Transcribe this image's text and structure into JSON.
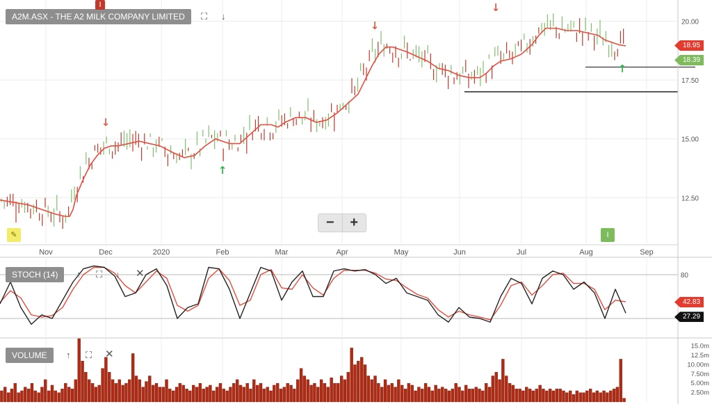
{
  "panels": {
    "price": {
      "label": "A2M.ASX - THE A2 MILK COMPANY LIMITED"
    },
    "stoch": {
      "label": "STOCH (14)"
    },
    "volume": {
      "label": "VOLUME"
    }
  },
  "controls": {
    "zoom_out": "−",
    "zoom_in": "+"
  },
  "flags": {
    "top": "I",
    "bottom": "I"
  },
  "icons": [
    "expand-icon",
    "arrow-down-icon",
    "arrow-up-icon",
    "close-icon",
    "pencil-icon",
    "zoom-out-icon",
    "zoom-in-icon"
  ],
  "colors": {
    "up": "#7fbf6a",
    "down": "#c0392b",
    "ma": "#e74c3c",
    "stoch_k": "#222222",
    "stoch_d": "#e74c3c",
    "volume": "#b22a12",
    "panel_label_bg": "#8e8e8e"
  },
  "chart_data": [
    {
      "type": "line",
      "title": "A2M.ASX - THE A2 MILK COMPANY LIMITED",
      "x_ticks": [
        "Nov",
        "Dec",
        "2020",
        "Feb",
        "Mar",
        "Apr",
        "May",
        "Jun",
        "Jul",
        "Aug",
        "Sep"
      ],
      "y_ticks": [
        "12.50",
        "15.00",
        "17.50",
        "20.00"
      ],
      "ylim": [
        10.5,
        20.9
      ],
      "last_price": "18.39",
      "ma_value": "18.95",
      "support_levels": [
        18.05,
        17.0
      ],
      "series": [
        {
          "name": "",
          "values_x": [
            0,
            20,
            40,
            60,
            80,
            95,
            100,
            105,
            110,
            120,
            130,
            140,
            150,
            160,
            170,
            185,
            200,
            215,
            230,
            250,
            265,
            280,
            295,
            310,
            320,
            330,
            345,
            360,
            375,
            390,
            400,
            410,
            425,
            440,
            455,
            470,
            485,
            500,
            515,
            525,
            535,
            545,
            555,
            565,
            575,
            585,
            600,
            615,
            630,
            645,
            660,
            675,
            690,
            700,
            710,
            720,
            735,
            750,
            765,
            775,
            785,
            800,
            815,
            830,
            845,
            860,
            870,
            880,
            890,
            900
          ],
          "values": [
            12.4,
            12.3,
            12.2,
            12.0,
            11.8,
            11.7,
            11.7,
            12.0,
            12.6,
            13.3,
            13.9,
            14.3,
            14.6,
            14.7,
            14.7,
            14.8,
            14.9,
            14.8,
            14.7,
            14.4,
            14.2,
            14.3,
            14.7,
            15.0,
            14.9,
            14.8,
            14.8,
            15.2,
            15.6,
            15.6,
            15.5,
            15.7,
            15.9,
            15.9,
            15.7,
            15.8,
            16.1,
            16.5,
            16.9,
            17.5,
            18.1,
            18.6,
            18.9,
            18.9,
            18.8,
            18.7,
            18.5,
            18.3,
            18.0,
            17.9,
            17.7,
            17.6,
            17.6,
            17.8,
            18.1,
            18.3,
            18.4,
            18.6,
            19.0,
            19.4,
            19.7,
            19.7,
            19.6,
            19.6,
            19.5,
            19.4,
            19.2,
            19.1,
            19.0,
            18.95
          ]
        }
      ]
    },
    {
      "type": "line",
      "title": "STOCH (14)",
      "y_ticks": [
        "20",
        "80"
      ],
      "ylim": [
        0,
        100
      ],
      "k_last": "27.29",
      "d_last": "42.83",
      "series": [
        {
          "name": "",
          "values_x": [
            0,
            15,
            30,
            45,
            60,
            75,
            90,
            105,
            120,
            135,
            150,
            165,
            180,
            195,
            210,
            225,
            240,
            255,
            270,
            285,
            300,
            315,
            330,
            345,
            360,
            375,
            390,
            405,
            420,
            435,
            450,
            465,
            480,
            495,
            510,
            525,
            540,
            555,
            570,
            585,
            600,
            615,
            630,
            645,
            660,
            675,
            690,
            705,
            720,
            735,
            750,
            765,
            780,
            795,
            810,
            825,
            840,
            855,
            870,
            885,
            900
          ],
          "values": [
            40,
            70,
            35,
            12,
            25,
            20,
            45,
            70,
            88,
            92,
            90,
            78,
            50,
            55,
            80,
            88,
            65,
            20,
            35,
            40,
            90,
            88,
            60,
            20,
            55,
            90,
            85,
            45,
            70,
            85,
            50,
            50,
            85,
            88,
            85,
            87,
            80,
            68,
            75,
            55,
            50,
            45,
            25,
            15,
            35,
            22,
            20,
            15,
            50,
            75,
            68,
            40,
            75,
            85,
            80,
            60,
            70,
            55,
            20,
            60,
            27.29
          ]
        },
        {
          "name": "",
          "values_x": [
            0,
            15,
            30,
            45,
            60,
            75,
            90,
            105,
            120,
            135,
            150,
            165,
            180,
            195,
            210,
            225,
            240,
            255,
            270,
            285,
            300,
            315,
            330,
            345,
            360,
            375,
            390,
            405,
            420,
            435,
            450,
            465,
            480,
            495,
            510,
            525,
            540,
            555,
            570,
            585,
            600,
            615,
            630,
            645,
            660,
            675,
            690,
            705,
            720,
            735,
            750,
            765,
            780,
            795,
            810,
            825,
            840,
            855,
            870,
            885,
            900
          ],
          "values": [
            42,
            58,
            48,
            25,
            22,
            24,
            35,
            60,
            80,
            90,
            90,
            82,
            65,
            55,
            70,
            85,
            75,
            38,
            30,
            38,
            75,
            88,
            72,
            38,
            45,
            80,
            87,
            62,
            60,
            80,
            62,
            52,
            75,
            86,
            86,
            86,
            82,
            74,
            72,
            62,
            53,
            48,
            32,
            22,
            30,
            25,
            22,
            18,
            38,
            65,
            70,
            52,
            65,
            80,
            82,
            68,
            68,
            60,
            32,
            45,
            42.83
          ]
        }
      ]
    },
    {
      "type": "bar",
      "title": "VOLUME",
      "y_ticks": [
        "2.50m",
        "5.00m",
        "7.50m",
        "10.00m",
        "12.5m",
        "15.0m"
      ],
      "ylim": [
        0,
        17
      ],
      "values": [
        3,
        4,
        2.5,
        3.5,
        5,
        2.5,
        3,
        4,
        3.5,
        5,
        3,
        2.5,
        4,
        6,
        3,
        4.5,
        3,
        2.5,
        3.5,
        5,
        4,
        3.5,
        6,
        17,
        11,
        8,
        6,
        5,
        4,
        4.5,
        9,
        12,
        8,
        6,
        5,
        6,
        4.5,
        5,
        6,
        13,
        7,
        6,
        4,
        5.5,
        7,
        4.5,
        5,
        4,
        4,
        6,
        3.5,
        3,
        4,
        5,
        4.5,
        3.5,
        3,
        4.5,
        4,
        5,
        3.5,
        4,
        4.5,
        3,
        4,
        5,
        3.5,
        3,
        4,
        5,
        6,
        4.5,
        4,
        5,
        3.5,
        6,
        4.5,
        5,
        3.5,
        4,
        3,
        4.5,
        5,
        3.5,
        4,
        5,
        4.5,
        3.5,
        6,
        9,
        7,
        6,
        4.5,
        5,
        4,
        6,
        5,
        4,
        6.5,
        5,
        5,
        7,
        6,
        8,
        14.5,
        10,
        11,
        12,
        10,
        7,
        6,
        7,
        5,
        4,
        6,
        4.5,
        5,
        4,
        6,
        4.5,
        3.5,
        5,
        4.5,
        3,
        4,
        3.5,
        5,
        4,
        3,
        4.5,
        3.5,
        4,
        3.5,
        3,
        3.5,
        5,
        4,
        3,
        4.5,
        3.5,
        3.5,
        4,
        3.5,
        3,
        5,
        4,
        7,
        8,
        6,
        11.5,
        7,
        5,
        4.5,
        3.5,
        3.5,
        3,
        4,
        3.5,
        3,
        3.5,
        4.5,
        3.5,
        3,
        3.5,
        3,
        3.5,
        3.5,
        3,
        2.5,
        3,
        2,
        3,
        2.5,
        2.5,
        3,
        3.5,
        2.5,
        3,
        2.5,
        3,
        2.5,
        3,
        3.5,
        4,
        11.5,
        1
      ]
    }
  ]
}
